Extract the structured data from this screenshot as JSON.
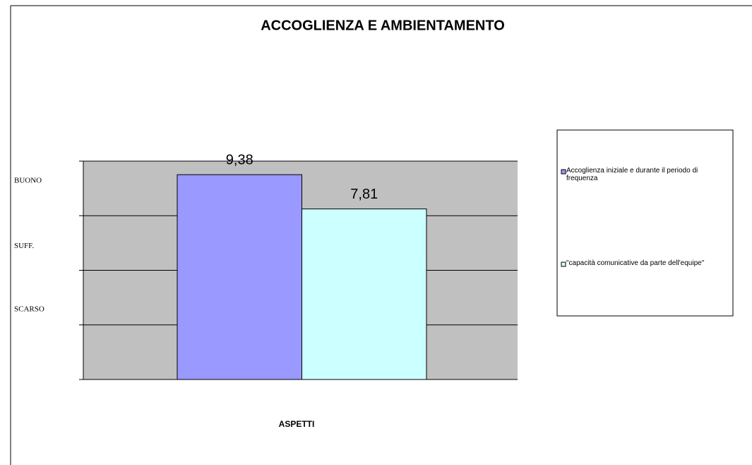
{
  "chart_data": {
    "type": "bar",
    "title": "ACCOGLIENZA E AMBIENTAMENTO",
    "x_label": "ASPETTI",
    "categories": [
      null
    ],
    "series": [
      {
        "name": "Accoglienza iniziale e durante il periodo di frequenza",
        "color": "#9999ff",
        "values": [
          9.38
        ],
        "value_labels": [
          "9,38"
        ]
      },
      {
        "name": "\"capacità comunicative da parte dell'equipe\"",
        "color": "#ccffff",
        "values": [
          7.81
        ],
        "value_labels": [
          "7,81"
        ]
      }
    ],
    "ylim": [
      0,
      10
    ],
    "yticks": [
      {
        "value": 9.1,
        "label": "BUONO"
      },
      {
        "value": 6.1,
        "label": "SUFF."
      },
      {
        "value": 3.2,
        "label": "SCARSO"
      }
    ],
    "grid_values": [
      0,
      2.5,
      5,
      7.5,
      10
    ],
    "grid": true,
    "plot_background": "#c0c0c0",
    "legend": "right"
  }
}
